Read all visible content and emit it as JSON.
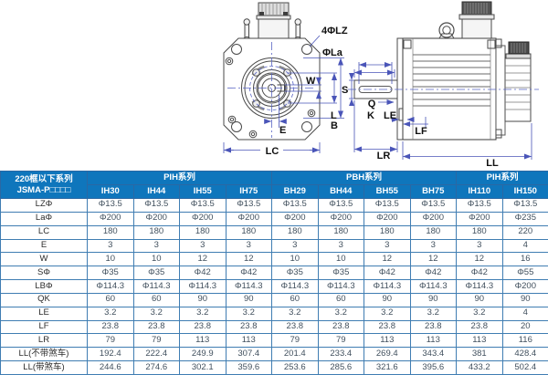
{
  "drawing": {
    "labels": {
      "bolt_holes": "4ΦLZ",
      "la": "ΦLa",
      "w": "W",
      "e": "E",
      "lc": "LC",
      "s": "S",
      "q": "Q",
      "k": "K",
      "l": "L",
      "b": "B",
      "le": "LE",
      "lf": "LF",
      "lr": "LR",
      "ll": "LL"
    }
  },
  "table": {
    "corner_header": {
      "line1": "220框以下系列",
      "line2": "JSMA-P□□□□"
    },
    "series": [
      {
        "name": "PIH系列",
        "models": [
          "IH30",
          "IH44",
          "IH55",
          "IH75"
        ]
      },
      {
        "name": "PBH系列",
        "models": [
          "BH29",
          "BH44",
          "BH55",
          "BH75"
        ]
      },
      {
        "name": "PIH系列",
        "models": [
          "IH110",
          "IH150"
        ]
      }
    ],
    "rows": [
      {
        "label": "LZΦ",
        "values": [
          "Φ13.5",
          "Φ13.5",
          "Φ13.5",
          "Φ13.5",
          "Φ13.5",
          "Φ13.5",
          "Φ13.5",
          "Φ13.5",
          "Φ13.5",
          "Φ13.5"
        ]
      },
      {
        "label": "LaΦ",
        "values": [
          "Φ200",
          "Φ200",
          "Φ200",
          "Φ200",
          "Φ200",
          "Φ200",
          "Φ200",
          "Φ200",
          "Φ200",
          "Φ235"
        ]
      },
      {
        "label": "LC",
        "values": [
          "180",
          "180",
          "180",
          "180",
          "180",
          "180",
          "180",
          "180",
          "180",
          "220"
        ]
      },
      {
        "label": "E",
        "values": [
          "3",
          "3",
          "3",
          "3",
          "3",
          "3",
          "3",
          "3",
          "3",
          "4"
        ]
      },
      {
        "label": "W",
        "values": [
          "10",
          "10",
          "12",
          "12",
          "10",
          "10",
          "12",
          "12",
          "12",
          "16"
        ]
      },
      {
        "label": "SΦ",
        "values": [
          "Φ35",
          "Φ35",
          "Φ42",
          "Φ42",
          "Φ35",
          "Φ35",
          "Φ42",
          "Φ42",
          "Φ42",
          "Φ55"
        ]
      },
      {
        "label": "LBΦ",
        "values": [
          "Φ114.3",
          "Φ114.3",
          "Φ114.3",
          "Φ114.3",
          "Φ114.3",
          "Φ114.3",
          "Φ114.3",
          "Φ114.3",
          "Φ114.3",
          "Φ200"
        ]
      },
      {
        "label": "QK",
        "values": [
          "60",
          "60",
          "90",
          "90",
          "60",
          "60",
          "90",
          "90",
          "90",
          "90"
        ]
      },
      {
        "label": "LE",
        "values": [
          "3.2",
          "3.2",
          "3.2",
          "3.2",
          "3.2",
          "3.2",
          "3.2",
          "3.2",
          "3.2",
          "4"
        ]
      },
      {
        "label": "LF",
        "values": [
          "23.8",
          "23.8",
          "23.8",
          "23.8",
          "23.8",
          "23.8",
          "23.8",
          "23.8",
          "23.8",
          "20"
        ]
      },
      {
        "label": "LR",
        "values": [
          "79",
          "79",
          "113",
          "113",
          "79",
          "79",
          "113",
          "113",
          "113",
          "116"
        ]
      },
      {
        "label": "LL(不带煞车)",
        "values": [
          "192.4",
          "222.4",
          "249.9",
          "307.4",
          "201.4",
          "233.4",
          "269.4",
          "343.4",
          "381",
          "428.4"
        ]
      },
      {
        "label": "LL(带煞车)",
        "values": [
          "244.6",
          "274.6",
          "302.1",
          "359.6",
          "253.6",
          "285.6",
          "321.6",
          "395.6",
          "433.2",
          "502.4"
        ]
      }
    ],
    "colors": {
      "header_bg": "#0f76bc",
      "header_text": "#ffffff",
      "border": "#3f7db2",
      "cell_text": "#41505e"
    }
  }
}
